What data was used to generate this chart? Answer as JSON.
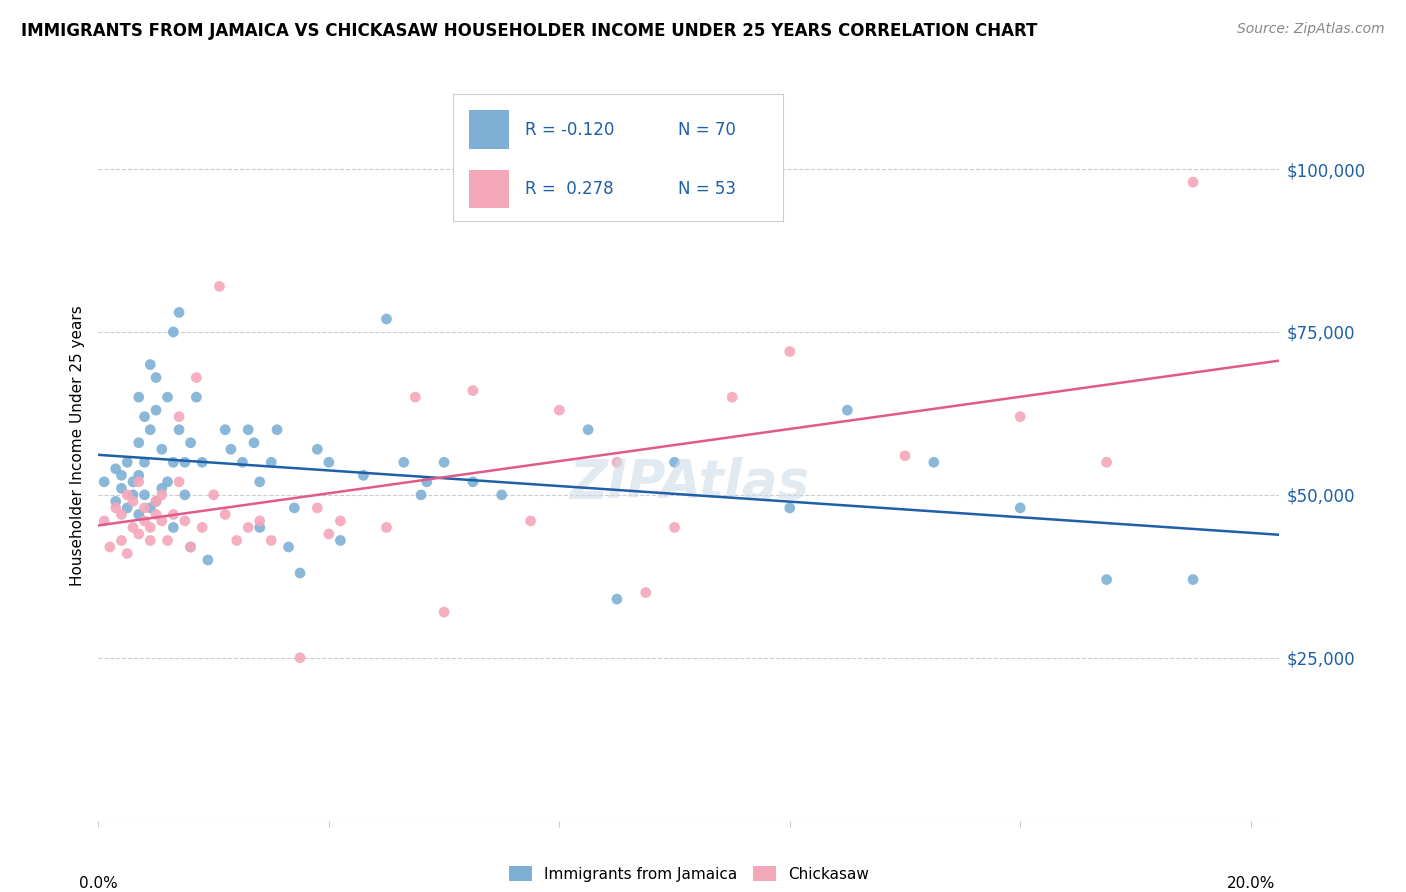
{
  "title": "IMMIGRANTS FROM JAMAICA VS CHICKASAW HOUSEHOLDER INCOME UNDER 25 YEARS CORRELATION CHART",
  "source": "Source: ZipAtlas.com",
  "ylabel": "Householder Income Under 25 years",
  "legend_labels": [
    "Immigrants from Jamaica",
    "Chickasaw"
  ],
  "r_jamaica": -0.12,
  "n_jamaica": 70,
  "r_chickasaw": 0.278,
  "n_chickasaw": 53,
  "blue_color": "#7EB0D5",
  "pink_color": "#F4A7B9",
  "blue_line_color": "#1E5FA8",
  "pink_line_color": "#E05A8A",
  "right_label_color": "#1E5FA8",
  "ytick_labels": [
    "$25,000",
    "$50,000",
    "$75,000",
    "$100,000"
  ],
  "ytick_values": [
    25000,
    50000,
    75000,
    100000
  ],
  "ymin": 0,
  "ymax": 115000,
  "xmin": 0.0,
  "xmax": 0.205,
  "watermark": "ZIPAtlas",
  "blue_scatter_x": [
    0.001,
    0.003,
    0.003,
    0.004,
    0.004,
    0.005,
    0.005,
    0.006,
    0.006,
    0.007,
    0.007,
    0.007,
    0.007,
    0.008,
    0.008,
    0.008,
    0.009,
    0.009,
    0.009,
    0.01,
    0.01,
    0.01,
    0.011,
    0.011,
    0.012,
    0.012,
    0.013,
    0.013,
    0.013,
    0.014,
    0.014,
    0.015,
    0.015,
    0.016,
    0.016,
    0.017,
    0.018,
    0.019,
    0.022,
    0.023,
    0.025,
    0.026,
    0.027,
    0.028,
    0.028,
    0.03,
    0.031,
    0.033,
    0.034,
    0.035,
    0.038,
    0.04,
    0.042,
    0.046,
    0.05,
    0.053,
    0.056,
    0.057,
    0.06,
    0.065,
    0.07,
    0.085,
    0.09,
    0.1,
    0.12,
    0.13,
    0.145,
    0.16,
    0.175,
    0.19
  ],
  "blue_scatter_y": [
    52000,
    49000,
    54000,
    51000,
    53000,
    48000,
    55000,
    50000,
    52000,
    47000,
    53000,
    58000,
    65000,
    50000,
    55000,
    62000,
    48000,
    60000,
    70000,
    49000,
    63000,
    68000,
    51000,
    57000,
    52000,
    65000,
    45000,
    55000,
    75000,
    60000,
    78000,
    50000,
    55000,
    42000,
    58000,
    65000,
    55000,
    40000,
    60000,
    57000,
    55000,
    60000,
    58000,
    45000,
    52000,
    55000,
    60000,
    42000,
    48000,
    38000,
    57000,
    55000,
    43000,
    53000,
    77000,
    55000,
    50000,
    52000,
    55000,
    52000,
    50000,
    60000,
    34000,
    55000,
    48000,
    63000,
    55000,
    48000,
    37000,
    37000
  ],
  "pink_scatter_x": [
    0.001,
    0.002,
    0.003,
    0.004,
    0.004,
    0.005,
    0.005,
    0.006,
    0.006,
    0.007,
    0.007,
    0.008,
    0.008,
    0.009,
    0.009,
    0.01,
    0.01,
    0.011,
    0.011,
    0.012,
    0.013,
    0.014,
    0.014,
    0.015,
    0.016,
    0.017,
    0.018,
    0.02,
    0.021,
    0.022,
    0.024,
    0.026,
    0.028,
    0.03,
    0.035,
    0.038,
    0.04,
    0.042,
    0.05,
    0.055,
    0.06,
    0.065,
    0.075,
    0.08,
    0.09,
    0.095,
    0.1,
    0.11,
    0.12,
    0.14,
    0.16,
    0.175,
    0.19
  ],
  "pink_scatter_y": [
    46000,
    42000,
    48000,
    43000,
    47000,
    41000,
    50000,
    45000,
    49000,
    44000,
    52000,
    46000,
    48000,
    43000,
    45000,
    47000,
    49000,
    50000,
    46000,
    43000,
    47000,
    62000,
    52000,
    46000,
    42000,
    68000,
    45000,
    50000,
    82000,
    47000,
    43000,
    45000,
    46000,
    43000,
    25000,
    48000,
    44000,
    46000,
    45000,
    65000,
    32000,
    66000,
    46000,
    63000,
    55000,
    35000,
    45000,
    65000,
    72000,
    56000,
    62000,
    55000,
    98000
  ]
}
